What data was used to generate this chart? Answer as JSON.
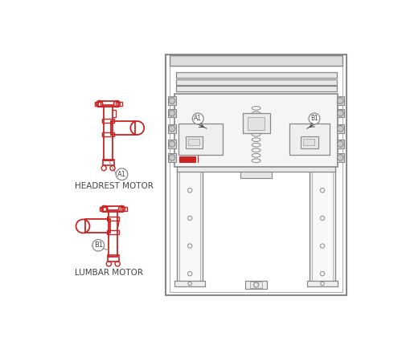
{
  "bg_color": "#ffffff",
  "lc": "#888888",
  "lc2": "#aaaaaa",
  "dk": "#444444",
  "rc": "#cc2222",
  "fig_width": 5.0,
  "fig_height": 4.5,
  "dpi": 100,
  "label_headrest": "HEADREST MOTOR",
  "label_lumbar": "LUMBAR MOTOR",
  "label_A1": "A1",
  "label_B1": "B1"
}
